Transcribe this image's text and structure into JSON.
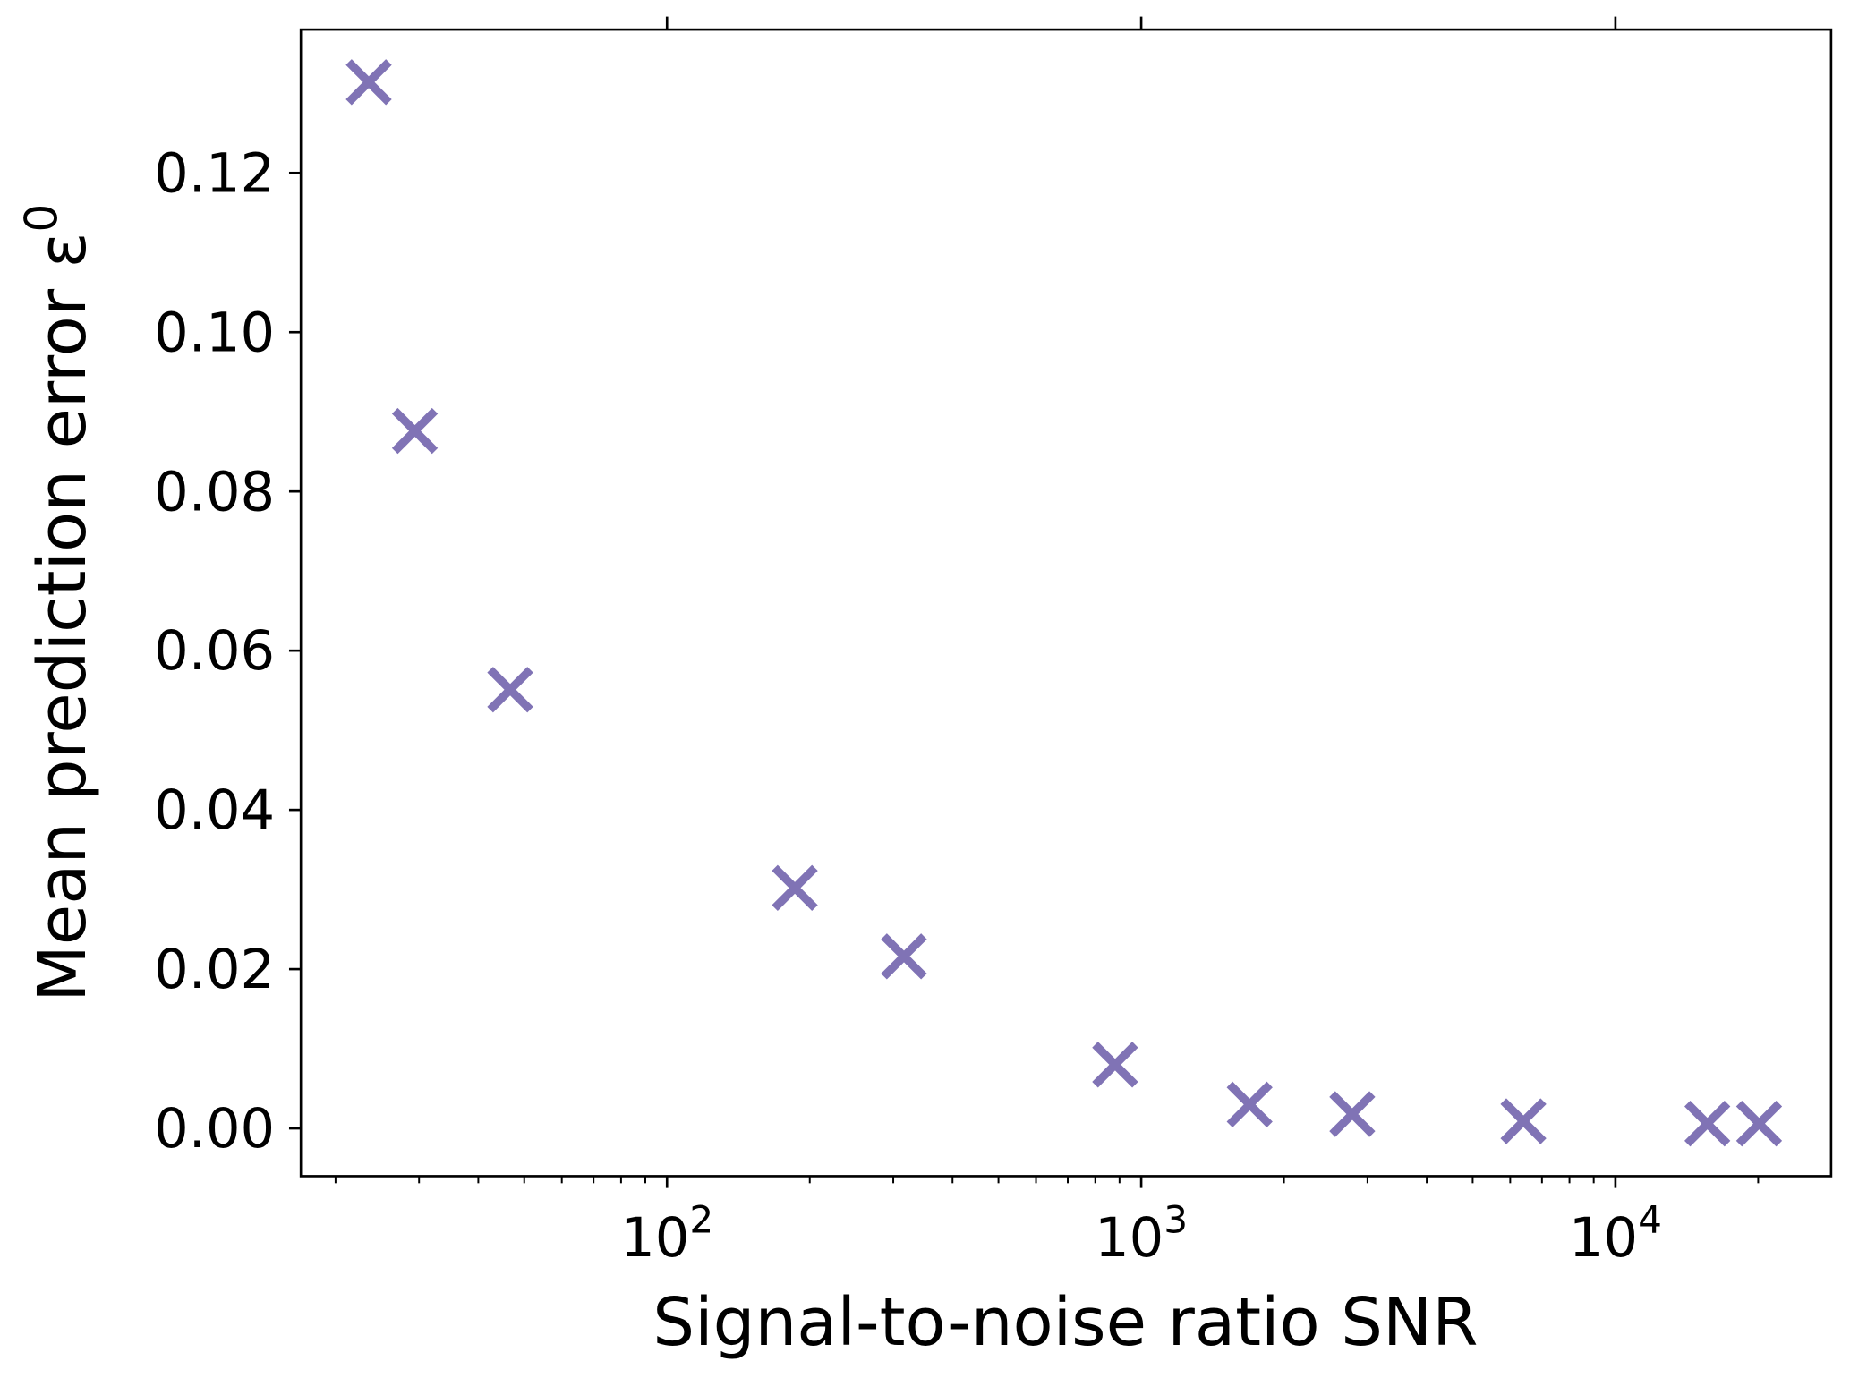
{
  "chart_data": {
    "type": "scatter",
    "title": "",
    "xlabel": "Signal-to-noise ratio SNR",
    "ylabel": "Mean prediction error ε",
    "ylabel_superscript": "0",
    "xscale": "log",
    "xlim": [
      16.9,
      28500
    ],
    "ylim": [
      -0.006,
      0.138
    ],
    "grid": false,
    "marker": "x",
    "color": "#8073b5",
    "x_ticks": [
      {
        "value": 100,
        "base": "10",
        "exp": "2"
      },
      {
        "value": 1000,
        "base": "10",
        "exp": "3"
      },
      {
        "value": 10000,
        "base": "10",
        "exp": "4"
      }
    ],
    "y_ticks": [
      {
        "value": 0.0,
        "label": "0.00"
      },
      {
        "value": 0.02,
        "label": "0.02"
      },
      {
        "value": 0.04,
        "label": "0.04"
      },
      {
        "value": 0.06,
        "label": "0.06"
      },
      {
        "value": 0.08,
        "label": "0.08"
      },
      {
        "value": 0.1,
        "label": "0.10"
      },
      {
        "value": 0.12,
        "label": "0.12"
      }
    ],
    "points": [
      {
        "x": 23.5,
        "y": 0.1314
      },
      {
        "x": 29.4,
        "y": 0.0876
      },
      {
        "x": 46.7,
        "y": 0.0551
      },
      {
        "x": 186,
        "y": 0.0302
      },
      {
        "x": 316,
        "y": 0.0216
      },
      {
        "x": 881,
        "y": 0.008
      },
      {
        "x": 1693,
        "y": 0.003
      },
      {
        "x": 2787,
        "y": 0.0018
      },
      {
        "x": 6397,
        "y": 0.0009
      },
      {
        "x": 15630,
        "y": 0.0006
      },
      {
        "x": 20090,
        "y": 0.0006
      }
    ]
  }
}
